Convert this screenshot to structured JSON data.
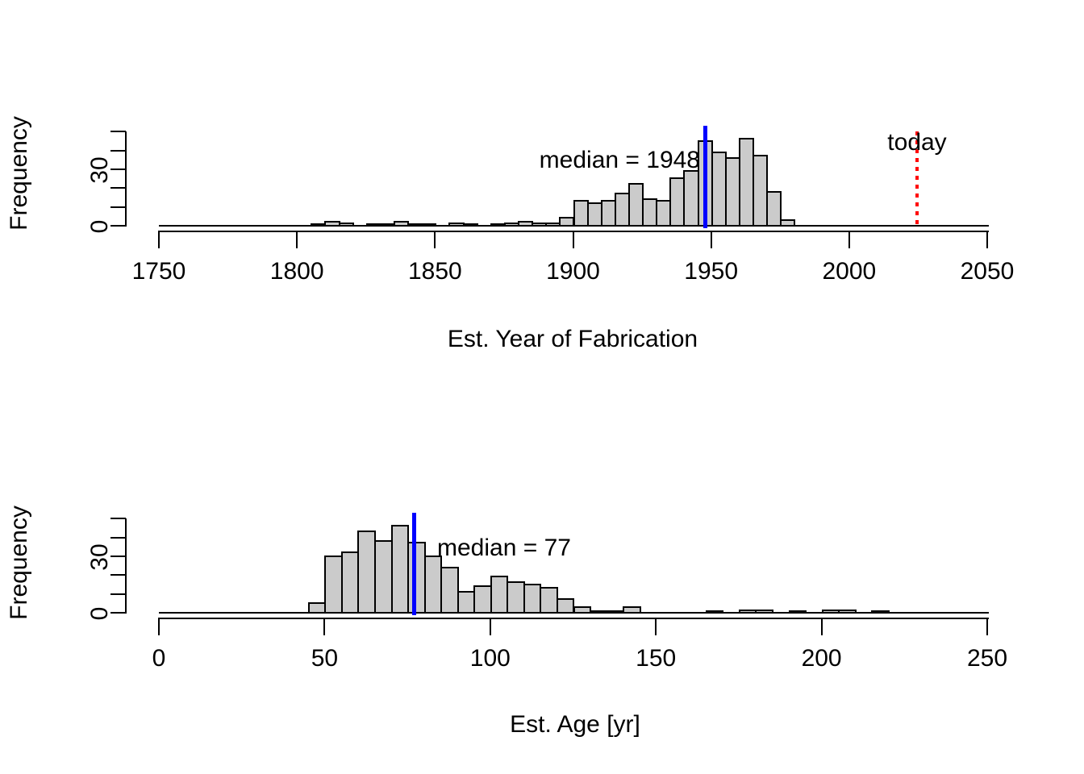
{
  "chart_data": [
    {
      "type": "bar",
      "subtype": "histogram",
      "title": "",
      "xlabel": "Est. Year of Fabrication",
      "ylabel": "Frequency",
      "bin_start": 1805,
      "bin_width": 5,
      "values": [
        1,
        3,
        2,
        0,
        1,
        1,
        3,
        1,
        1,
        0,
        2,
        1,
        0,
        1,
        2,
        3,
        2,
        2,
        5,
        14,
        13,
        14,
        18,
        23,
        15,
        14,
        26,
        30,
        46,
        40,
        37,
        47,
        38,
        19,
        4
      ],
      "x_ticks": [
        1750,
        1800,
        1850,
        1900,
        1950,
        2000,
        2050
      ],
      "y_ticks": [
        0,
        10,
        20,
        30,
        40,
        50
      ],
      "y_tick_labels_shown": [
        0,
        30
      ],
      "xlim": [
        1750,
        2050
      ],
      "ylim": [
        0,
        50
      ],
      "grid": "off",
      "annotations": {
        "median_label": "median = 1948",
        "median_value": 1948,
        "today_label": "today",
        "today_value": 2024.5
      },
      "colors": {
        "bar_fill": "#CBCBCB",
        "bar_border": "#000000",
        "median_line": "#0000FF",
        "today_line": "#FF0000"
      }
    },
    {
      "type": "bar",
      "subtype": "histogram",
      "title": "",
      "xlabel": "Est. Age [yr]",
      "ylabel": "Frequency",
      "bin_start": 45,
      "bin_width": 5,
      "values": [
        6,
        31,
        33,
        44,
        39,
        47,
        38,
        31,
        25,
        12,
        15,
        20,
        17,
        16,
        14,
        8,
        4,
        1,
        1,
        4,
        0,
        0,
        0,
        0,
        1,
        0,
        2,
        2,
        0,
        1,
        0,
        2,
        2,
        0,
        1
      ],
      "x_ticks": [
        0,
        50,
        100,
        150,
        200,
        250
      ],
      "y_ticks": [
        0,
        10,
        20,
        30,
        40,
        50
      ],
      "y_tick_labels_shown": [
        0,
        30
      ],
      "xlim": [
        0,
        250
      ],
      "ylim": [
        0,
        50
      ],
      "grid": "off",
      "annotations": {
        "median_label": "median = 77",
        "median_value": 77
      },
      "colors": {
        "bar_fill": "#CBCBCB",
        "bar_border": "#000000",
        "median_line": "#0000FF"
      }
    }
  ]
}
